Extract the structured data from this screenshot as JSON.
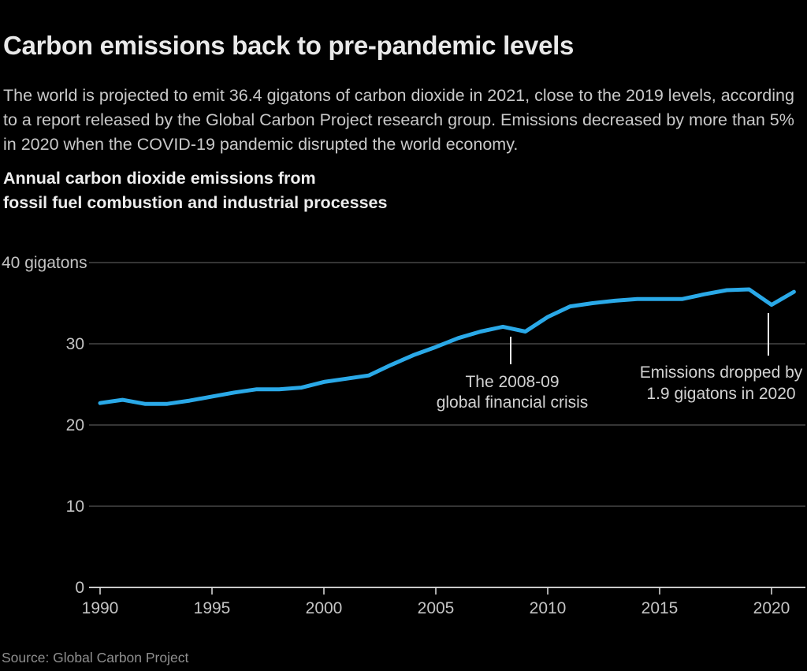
{
  "page": {
    "title": "Carbon emissions back to pre-pandemic levels",
    "description": "The world is projected to emit 36.4 gigatons of carbon dioxide in 2021, close to the 2019 levels, according to a report released by the Global Carbon Project research group. Emissions decreased by more than 5% in 2020 when the COVID-19 pandemic disrupted the world economy.",
    "source": "Source: Global Carbon Project"
  },
  "chart_data": {
    "type": "line",
    "title_lines": [
      "Annual carbon dioxide emissions from",
      "fossil fuel combustion and industrial processes"
    ],
    "x": [
      1990,
      1991,
      1992,
      1993,
      1994,
      1995,
      1996,
      1997,
      1998,
      1999,
      2000,
      2001,
      2002,
      2003,
      2004,
      2005,
      2006,
      2007,
      2008,
      2009,
      2010,
      2011,
      2012,
      2013,
      2014,
      2015,
      2016,
      2017,
      2018,
      2019,
      2020,
      2021
    ],
    "series": [
      {
        "name": "Annual CO2 emissions (gigatons)",
        "values": [
          22.7,
          23.1,
          22.6,
          22.6,
          23.0,
          23.5,
          24.0,
          24.4,
          24.4,
          24.6,
          25.3,
          25.7,
          26.1,
          27.4,
          28.6,
          29.6,
          30.7,
          31.5,
          32.1,
          31.5,
          33.3,
          34.6,
          35.0,
          35.3,
          35.5,
          35.5,
          35.5,
          36.1,
          36.6,
          36.7,
          34.8,
          36.4
        ]
      }
    ],
    "y_axis": {
      "range": [
        0,
        40
      ],
      "ticks": [
        {
          "value": 40,
          "label": "40 gigatons"
        },
        {
          "value": 30,
          "label": "30"
        },
        {
          "value": 20,
          "label": "20"
        },
        {
          "value": 10,
          "label": "10"
        },
        {
          "value": 0,
          "label": "0"
        }
      ]
    },
    "x_axis": {
      "range": [
        1990,
        2021
      ],
      "ticks": [
        "1990",
        "1995",
        "2000",
        "2005",
        "2010",
        "2015",
        "2020"
      ]
    },
    "grid": true,
    "legend": false,
    "annotations": [
      {
        "id": "financial-crisis",
        "lines": [
          "The 2008-09",
          "global financial crisis"
        ]
      },
      {
        "id": "drop-2020",
        "lines": [
          "Emissions dropped by",
          "1.9 gigatons in 2020"
        ]
      }
    ],
    "colors": {
      "line": "#2aa9e8",
      "grid": "#474747",
      "axis": "#c9c9c9",
      "tick": "#e0e0e0",
      "tick_label": "#c4c4c4",
      "annotation_text": "#d2d2d2",
      "annotation_pointer": "#efefef",
      "background": "#000000"
    }
  }
}
